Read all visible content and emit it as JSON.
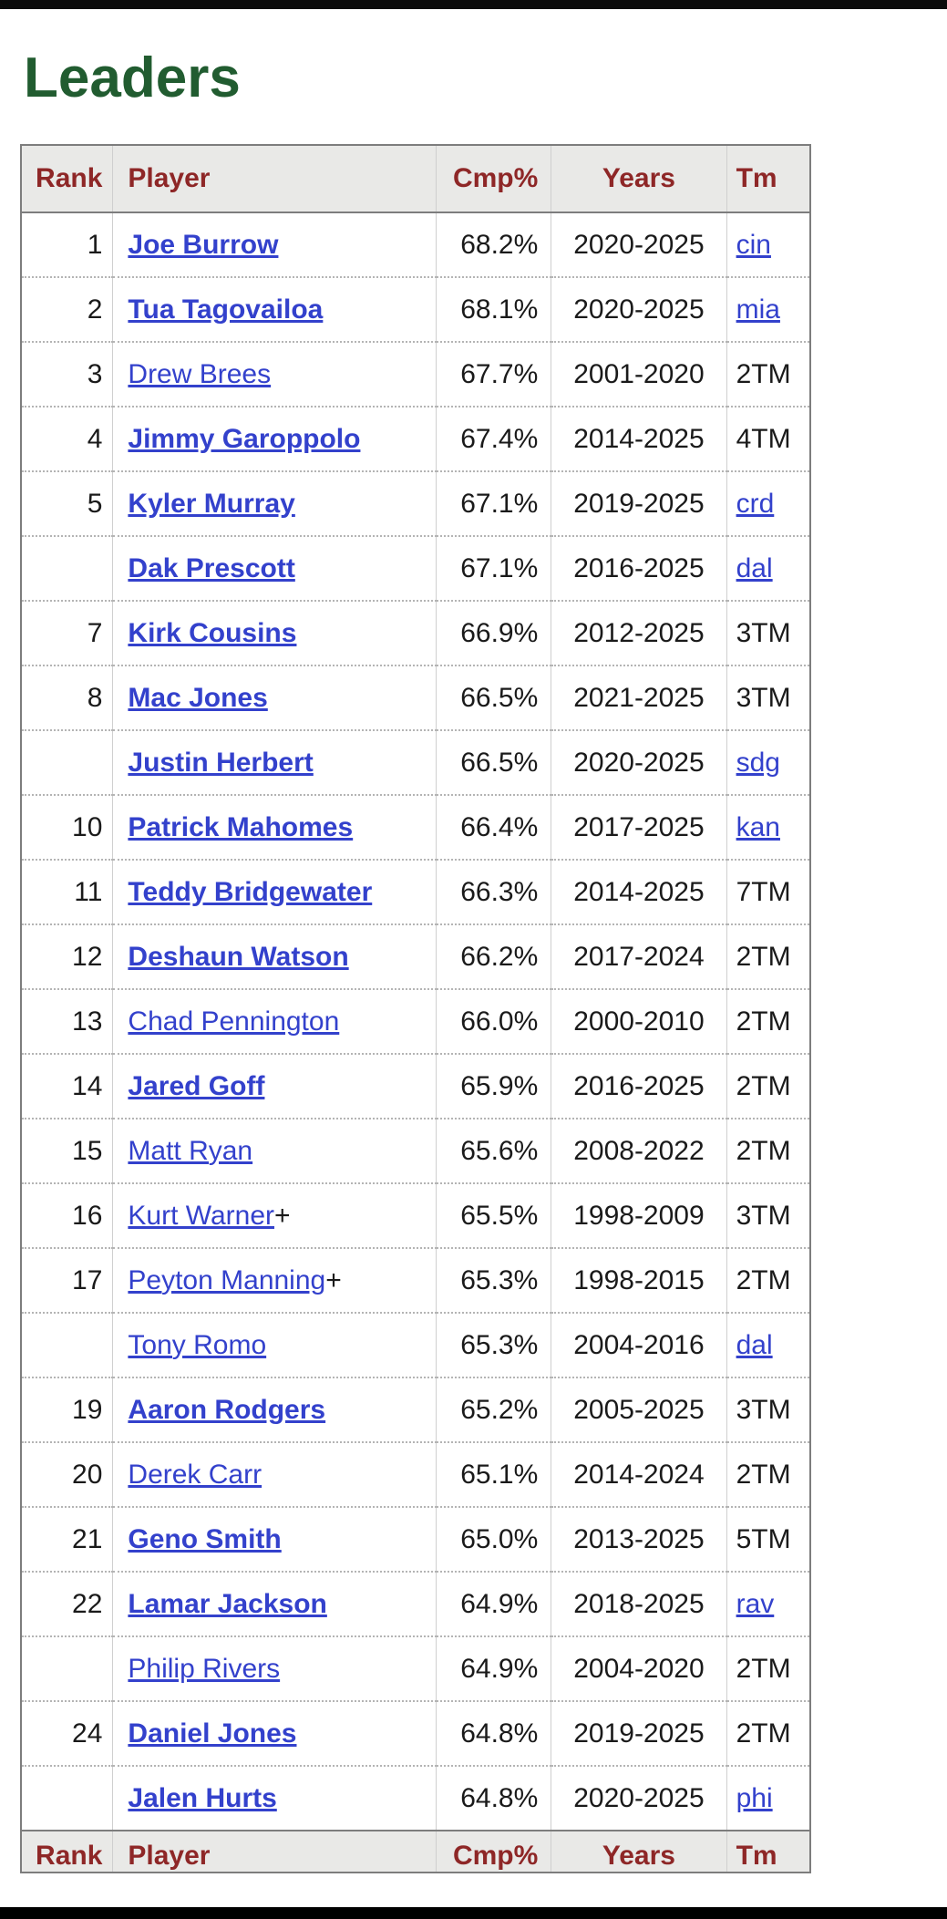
{
  "page": {
    "title": "Leaders"
  },
  "colors": {
    "title_green": "#215c30",
    "header_maroon": "#8e2727",
    "link_blue": "#3341cc",
    "header_bg": "#e9e9e7",
    "body_text": "#1a1a1a",
    "top_bar": "#0b0b0b",
    "bottom_bar": "#000000"
  },
  "table": {
    "columns": [
      {
        "label": "Rank"
      },
      {
        "label": "Player"
      },
      {
        "label": "Cmp%"
      },
      {
        "label": "Years"
      },
      {
        "label": "Tm"
      }
    ],
    "rows": [
      {
        "rank": "1",
        "player": "Joe Burrow",
        "bold": true,
        "suffix": "",
        "cmp": "68.2%",
        "years": "2020-2025",
        "tm": "cin",
        "tm_is_link": true
      },
      {
        "rank": "2",
        "player": "Tua Tagovailoa",
        "bold": true,
        "suffix": "",
        "cmp": "68.1%",
        "years": "2020-2025",
        "tm": "mia",
        "tm_is_link": true
      },
      {
        "rank": "3",
        "player": "Drew Brees",
        "bold": false,
        "suffix": "",
        "cmp": "67.7%",
        "years": "2001-2020",
        "tm": "2TM",
        "tm_is_link": false
      },
      {
        "rank": "4",
        "player": "Jimmy Garoppolo",
        "bold": true,
        "suffix": "",
        "cmp": "67.4%",
        "years": "2014-2025",
        "tm": "4TM",
        "tm_is_link": false
      },
      {
        "rank": "5",
        "player": "Kyler Murray",
        "bold": true,
        "suffix": "",
        "cmp": "67.1%",
        "years": "2019-2025",
        "tm": "crd",
        "tm_is_link": true
      },
      {
        "rank": "",
        "player": "Dak Prescott",
        "bold": true,
        "suffix": "",
        "cmp": "67.1%",
        "years": "2016-2025",
        "tm": "dal",
        "tm_is_link": true
      },
      {
        "rank": "7",
        "player": "Kirk Cousins",
        "bold": true,
        "suffix": "",
        "cmp": "66.9%",
        "years": "2012-2025",
        "tm": "3TM",
        "tm_is_link": false
      },
      {
        "rank": "8",
        "player": "Mac Jones",
        "bold": true,
        "suffix": "",
        "cmp": "66.5%",
        "years": "2021-2025",
        "tm": "3TM",
        "tm_is_link": false
      },
      {
        "rank": "",
        "player": "Justin Herbert",
        "bold": true,
        "suffix": "",
        "cmp": "66.5%",
        "years": "2020-2025",
        "tm": "sdg",
        "tm_is_link": true
      },
      {
        "rank": "10",
        "player": "Patrick Mahomes",
        "bold": true,
        "suffix": "",
        "cmp": "66.4%",
        "years": "2017-2025",
        "tm": "kan",
        "tm_is_link": true
      },
      {
        "rank": "11",
        "player": "Teddy Bridgewater",
        "bold": true,
        "suffix": "",
        "cmp": "66.3%",
        "years": "2014-2025",
        "tm": "7TM",
        "tm_is_link": false
      },
      {
        "rank": "12",
        "player": "Deshaun Watson",
        "bold": true,
        "suffix": "",
        "cmp": "66.2%",
        "years": "2017-2024",
        "tm": "2TM",
        "tm_is_link": false
      },
      {
        "rank": "13",
        "player": "Chad Pennington",
        "bold": false,
        "suffix": "",
        "cmp": "66.0%",
        "years": "2000-2010",
        "tm": "2TM",
        "tm_is_link": false
      },
      {
        "rank": "14",
        "player": "Jared Goff",
        "bold": true,
        "suffix": "",
        "cmp": "65.9%",
        "years": "2016-2025",
        "tm": "2TM",
        "tm_is_link": false
      },
      {
        "rank": "15",
        "player": "Matt Ryan",
        "bold": false,
        "suffix": "",
        "cmp": "65.6%",
        "years": "2008-2022",
        "tm": "2TM",
        "tm_is_link": false
      },
      {
        "rank": "16",
        "player": "Kurt Warner",
        "bold": false,
        "suffix": "+",
        "cmp": "65.5%",
        "years": "1998-2009",
        "tm": "3TM",
        "tm_is_link": false
      },
      {
        "rank": "17",
        "player": "Peyton Manning",
        "bold": false,
        "suffix": "+",
        "cmp": "65.3%",
        "years": "1998-2015",
        "tm": "2TM",
        "tm_is_link": false
      },
      {
        "rank": "",
        "player": "Tony Romo",
        "bold": false,
        "suffix": "",
        "cmp": "65.3%",
        "years": "2004-2016",
        "tm": "dal",
        "tm_is_link": true
      },
      {
        "rank": "19",
        "player": "Aaron Rodgers",
        "bold": true,
        "suffix": "",
        "cmp": "65.2%",
        "years": "2005-2025",
        "tm": "3TM",
        "tm_is_link": false
      },
      {
        "rank": "20",
        "player": "Derek Carr",
        "bold": false,
        "suffix": "",
        "cmp": "65.1%",
        "years": "2014-2024",
        "tm": "2TM",
        "tm_is_link": false
      },
      {
        "rank": "21",
        "player": "Geno Smith",
        "bold": true,
        "suffix": "",
        "cmp": "65.0%",
        "years": "2013-2025",
        "tm": "5TM",
        "tm_is_link": false
      },
      {
        "rank": "22",
        "player": "Lamar Jackson",
        "bold": true,
        "suffix": "",
        "cmp": "64.9%",
        "years": "2018-2025",
        "tm": "rav",
        "tm_is_link": true
      },
      {
        "rank": "",
        "player": "Philip Rivers",
        "bold": false,
        "suffix": "",
        "cmp": "64.9%",
        "years": "2004-2020",
        "tm": "2TM",
        "tm_is_link": false
      },
      {
        "rank": "24",
        "player": "Daniel Jones",
        "bold": true,
        "suffix": "",
        "cmp": "64.8%",
        "years": "2019-2025",
        "tm": "2TM",
        "tm_is_link": false
      },
      {
        "rank": "",
        "player": "Jalen Hurts",
        "bold": true,
        "suffix": "",
        "cmp": "64.8%",
        "years": "2020-2025",
        "tm": "phi",
        "tm_is_link": true
      }
    ]
  }
}
